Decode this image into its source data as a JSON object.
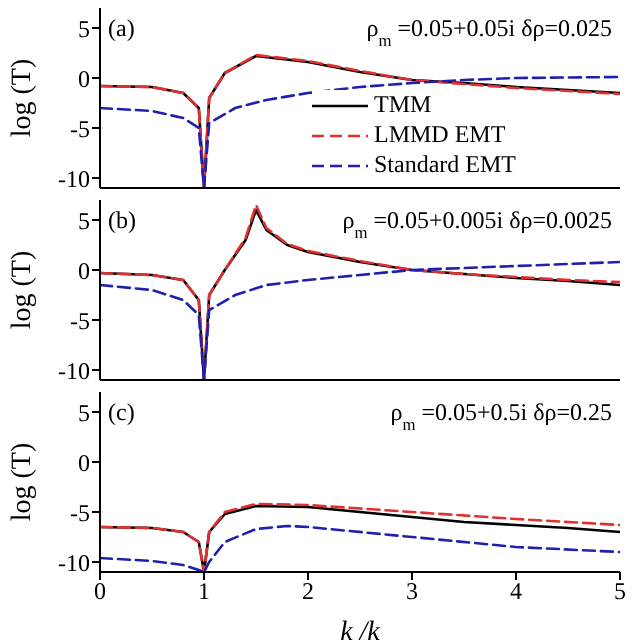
{
  "chart_data": [
    {
      "type": "line",
      "ylabel": "log (T)",
      "annotations": [
        "(a)",
        "ρ$_{m}$=0.05+0.05i   δρ=0.025"
      ],
      "xlim": [
        0,
        5
      ],
      "xticks": [
        0,
        1,
        2,
        3,
        4,
        5
      ],
      "ylim": [
        -11,
        7
      ],
      "yticks": [
        -10,
        -5,
        0,
        5
      ],
      "tick_labels": "y",
      "legend": "bottom right",
      "grid": false,
      "series": [
        {
          "name": "TMM",
          "color": "#000000",
          "line_style": "solid",
          "x": [
            0,
            0.5,
            0.8,
            0.95,
            1,
            1.05,
            1.2,
            1.5,
            2,
            2.5,
            3,
            3.5,
            4,
            4.5,
            5
          ],
          "values": [
            -0.8,
            -0.9,
            -1.5,
            -3,
            -11,
            -2,
            0.5,
            2.2,
            1.6,
            0.6,
            -0.2,
            -0.5,
            -0.9,
            -1.2,
            -1.5
          ]
        },
        {
          "name": "LMMD EMT",
          "color": "#e03030",
          "line_style": "dashed",
          "x": [
            0,
            0.5,
            0.8,
            0.95,
            1,
            1.05,
            1.2,
            1.5,
            2,
            2.5,
            3,
            3.5,
            4,
            4.5,
            5
          ],
          "values": [
            -0.8,
            -0.9,
            -1.5,
            -3,
            -11,
            -2,
            0.5,
            2.3,
            1.7,
            0.7,
            -0.2,
            -0.6,
            -1,
            -1.3,
            -1.6
          ]
        },
        {
          "name": "Standard EMT",
          "color": "#2020b0",
          "line_style": "dashed",
          "x": [
            0,
            0.5,
            0.8,
            0.95,
            1,
            1.05,
            1.3,
            1.6,
            2,
            2.5,
            3,
            3.5,
            4,
            5
          ],
          "values": [
            -3,
            -3.3,
            -4,
            -5,
            -11,
            -4.5,
            -3,
            -2.2,
            -1.5,
            -0.9,
            -0.5,
            -0.2,
            0,
            0.1
          ]
        }
      ]
    },
    {
      "type": "line",
      "ylabel": "log (T)",
      "annotations": [
        "(b)",
        "ρ$_{m}$=0.05+0.005i   δρ=0.0025"
      ],
      "xlim": [
        0,
        5
      ],
      "xticks": [
        0,
        1,
        2,
        3,
        4,
        5
      ],
      "ylim": [
        -11,
        7
      ],
      "yticks": [
        -10,
        -5,
        0,
        5
      ],
      "tick_labels": "y",
      "grid": false,
      "series": [
        {
          "color": "#000000",
          "line_style": "solid",
          "x": [
            0,
            0.5,
            0.8,
            0.95,
            1,
            1.05,
            1.2,
            1.4,
            1.5,
            1.6,
            1.8,
            2,
            2.5,
            3,
            3.5,
            4,
            4.5,
            5
          ],
          "values": [
            -0.3,
            -0.5,
            -1,
            -3,
            -11,
            -2.5,
            0,
            3,
            6,
            4,
            2.5,
            1.8,
            0.8,
            0,
            -0.4,
            -0.8,
            -1.1,
            -1.5
          ]
        },
        {
          "color": "#e03030",
          "line_style": "dashed",
          "x": [
            0,
            0.5,
            0.8,
            0.95,
            1,
            1.05,
            1.2,
            1.4,
            1.5,
            1.6,
            1.8,
            2,
            2.5,
            3,
            3.5,
            4,
            4.5,
            5
          ],
          "values": [
            -0.3,
            -0.5,
            -1,
            -3,
            -11,
            -2.5,
            0,
            3.2,
            6.5,
            4.2,
            2.6,
            1.9,
            0.9,
            0,
            -0.4,
            -0.7,
            -1,
            -1.2
          ]
        },
        {
          "color": "#2020b0",
          "line_style": "dashed",
          "x": [
            0,
            0.5,
            0.8,
            0.95,
            1,
            1.05,
            1.3,
            1.6,
            2,
            2.5,
            3,
            4,
            5
          ],
          "values": [
            -1.5,
            -2,
            -3,
            -4.5,
            -11,
            -4,
            -2.5,
            -1.5,
            -1,
            -0.5,
            0,
            0.4,
            0.8
          ]
        }
      ]
    },
    {
      "type": "line",
      "xlabel": "k /k",
      "ylabel": "log (T)",
      "annotations": [
        "(c)",
        "ρ$_{m}$=0.05+0.5i   δρ=0.25"
      ],
      "xlim": [
        0,
        5
      ],
      "xticks": [
        0,
        1,
        2,
        3,
        4,
        5
      ],
      "ylim": [
        -11,
        7
      ],
      "yticks": [
        -10,
        -5,
        0,
        5
      ],
      "grid": false,
      "series": [
        {
          "color": "#000000",
          "line_style": "solid",
          "x": [
            0,
            0.5,
            0.8,
            0.95,
            1,
            1.05,
            1.2,
            1.5,
            2,
            2.5,
            3,
            3.5,
            4,
            4.5,
            5
          ],
          "values": [
            -6.5,
            -6.6,
            -7,
            -8,
            -11,
            -7,
            -5.2,
            -4.4,
            -4.5,
            -5,
            -5.5,
            -6,
            -6.3,
            -6.6,
            -7
          ]
        },
        {
          "color": "#e03030",
          "line_style": "dashed",
          "x": [
            0,
            0.5,
            0.8,
            0.95,
            1,
            1.05,
            1.2,
            1.5,
            2,
            3,
            4,
            5
          ],
          "values": [
            -6.5,
            -6.6,
            -7,
            -8,
            -11,
            -7,
            -5,
            -4.2,
            -4.3,
            -5,
            -5.7,
            -6.3
          ]
        },
        {
          "color": "#2020b0",
          "line_style": "dashed",
          "x": [
            0,
            0.5,
            0.8,
            0.95,
            1,
            1.05,
            1.2,
            1.5,
            1.8,
            2,
            3,
            4,
            5
          ],
          "values": [
            -9.6,
            -9.9,
            -10.3,
            -10.8,
            -11,
            -10,
            -8,
            -6.7,
            -6.4,
            -6.5,
            -7.5,
            -8.5,
            -9
          ]
        }
      ]
    }
  ]
}
